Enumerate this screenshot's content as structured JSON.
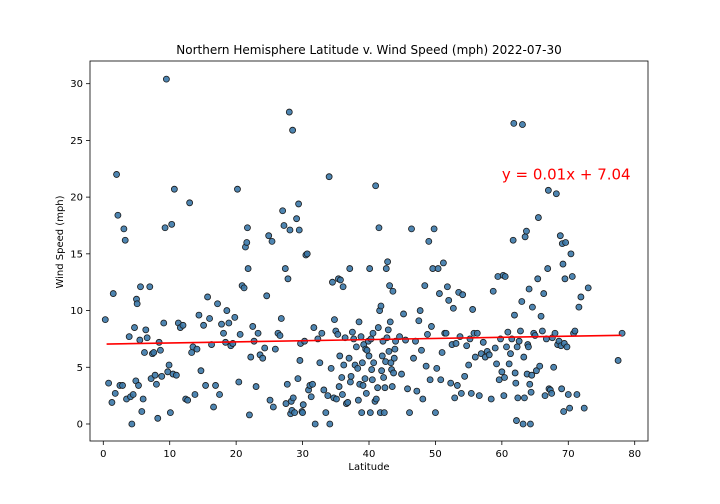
{
  "chart_data": {
    "type": "scatter",
    "title": "Northern Hemisphere Latitude v. Wind Speed (mph) 2022-07-30",
    "xlabel": "Latitude",
    "ylabel": "Wind Speed (mph)",
    "xlim": [
      -2,
      82
    ],
    "ylim": [
      -1.5,
      32
    ],
    "xticks": [
      0,
      10,
      20,
      30,
      40,
      50,
      60,
      70,
      80
    ],
    "yticks": [
      0,
      5,
      10,
      15,
      20,
      25,
      30
    ],
    "grid": false,
    "colors": {
      "points": "#3b78a8",
      "edge": "#1a1a1a",
      "line": "#ff0000"
    },
    "regression": {
      "slope": 0.01,
      "intercept": 7.04,
      "x_range": [
        0.5,
        78
      ],
      "label": "y = 0.01x + 7.04",
      "label_x": 60,
      "label_y": 22
    },
    "points": [
      [
        0.3,
        9.2
      ],
      [
        0.8,
        3.6
      ],
      [
        1.3,
        1.9
      ],
      [
        1.5,
        11.5
      ],
      [
        1.8,
        2.7
      ],
      [
        2.0,
        22.0
      ],
      [
        2.2,
        18.4
      ],
      [
        2.5,
        3.4
      ],
      [
        2.9,
        3.4
      ],
      [
        3.1,
        17.2
      ],
      [
        3.3,
        16.2
      ],
      [
        3.5,
        2.2
      ],
      [
        3.9,
        7.7
      ],
      [
        4.1,
        2.4
      ],
      [
        4.3,
        0.0
      ],
      [
        4.5,
        2.6
      ],
      [
        4.7,
        8.5
      ],
      [
        4.9,
        3.8
      ],
      [
        5.0,
        11.0
      ],
      [
        5.1,
        10.6
      ],
      [
        5.3,
        3.4
      ],
      [
        5.5,
        7.4
      ],
      [
        5.6,
        12.1
      ],
      [
        5.8,
        1.1
      ],
      [
        6.0,
        2.2
      ],
      [
        6.2,
        6.3
      ],
      [
        6.4,
        8.3
      ],
      [
        6.6,
        7.6
      ],
      [
        7.0,
        12.1
      ],
      [
        7.2,
        4.0
      ],
      [
        7.4,
        6.2
      ],
      [
        7.6,
        6.3
      ],
      [
        7.8,
        4.3
      ],
      [
        8.0,
        3.5
      ],
      [
        8.2,
        0.5
      ],
      [
        8.4,
        7.2
      ],
      [
        8.6,
        6.5
      ],
      [
        8.8,
        4.2
      ],
      [
        9.1,
        8.9
      ],
      [
        9.3,
        17.3
      ],
      [
        9.5,
        30.4
      ],
      [
        9.7,
        4.6
      ],
      [
        9.9,
        5.2
      ],
      [
        10.1,
        1.0
      ],
      [
        10.3,
        17.6
      ],
      [
        10.5,
        4.4
      ],
      [
        10.7,
        20.7
      ],
      [
        11.0,
        4.3
      ],
      [
        11.3,
        8.9
      ],
      [
        11.6,
        8.5
      ],
      [
        12.0,
        8.7
      ],
      [
        12.4,
        2.2
      ],
      [
        12.7,
        2.1
      ],
      [
        13.0,
        19.5
      ],
      [
        13.3,
        6.3
      ],
      [
        13.5,
        6.8
      ],
      [
        13.8,
        2.6
      ],
      [
        14.1,
        6.6
      ],
      [
        14.4,
        9.6
      ],
      [
        14.7,
        4.7
      ],
      [
        15.1,
        8.7
      ],
      [
        15.4,
        3.4
      ],
      [
        15.7,
        11.2
      ],
      [
        16.0,
        9.3
      ],
      [
        16.3,
        7.0
      ],
      [
        16.6,
        1.5
      ],
      [
        16.9,
        3.4
      ],
      [
        17.2,
        10.6
      ],
      [
        17.5,
        2.6
      ],
      [
        17.8,
        8.8
      ],
      [
        18.1,
        8.0
      ],
      [
        18.4,
        7.2
      ],
      [
        18.6,
        10.0
      ],
      [
        18.9,
        8.9
      ],
      [
        19.2,
        6.9
      ],
      [
        19.5,
        7.1
      ],
      [
        19.8,
        9.4
      ],
      [
        20.2,
        20.7
      ],
      [
        20.4,
        3.7
      ],
      [
        20.6,
        7.9
      ],
      [
        20.9,
        12.2
      ],
      [
        21.2,
        12.0
      ],
      [
        21.4,
        15.6
      ],
      [
        21.6,
        16.0
      ],
      [
        21.7,
        17.3
      ],
      [
        21.8,
        13.7
      ],
      [
        22.0,
        0.8
      ],
      [
        22.2,
        5.9
      ],
      [
        22.5,
        8.6
      ],
      [
        22.7,
        7.3
      ],
      [
        23.0,
        3.3
      ],
      [
        23.3,
        8.0
      ],
      [
        23.6,
        6.1
      ],
      [
        24.0,
        5.8
      ],
      [
        24.3,
        6.7
      ],
      [
        24.6,
        11.3
      ],
      [
        24.9,
        16.6
      ],
      [
        25.1,
        2.1
      ],
      [
        25.4,
        16.1
      ],
      [
        25.6,
        1.5
      ],
      [
        25.9,
        6.6
      ],
      [
        26.3,
        8.0
      ],
      [
        26.6,
        7.8
      ],
      [
        26.8,
        9.3
      ],
      [
        27.0,
        18.8
      ],
      [
        27.2,
        17.5
      ],
      [
        27.4,
        13.7
      ],
      [
        27.5,
        1.8
      ],
      [
        27.7,
        3.5
      ],
      [
        27.8,
        12.8
      ],
      [
        28.0,
        27.5
      ],
      [
        28.1,
        17.1
      ],
      [
        28.2,
        0.9
      ],
      [
        28.3,
        2.0
      ],
      [
        28.4,
        1.2
      ],
      [
        28.5,
        25.9
      ],
      [
        28.6,
        2.3
      ],
      [
        28.8,
        1.0
      ],
      [
        29.1,
        18.1
      ],
      [
        29.3,
        4.0
      ],
      [
        29.4,
        19.4
      ],
      [
        29.5,
        17.1
      ],
      [
        29.6,
        5.6
      ],
      [
        29.7,
        7.1
      ],
      [
        29.9,
        1.1
      ],
      [
        30.0,
        1.0
      ],
      [
        30.1,
        1.7
      ],
      [
        30.3,
        7.3
      ],
      [
        30.5,
        14.9
      ],
      [
        30.7,
        15.0
      ],
      [
        30.9,
        3.0
      ],
      [
        31.1,
        3.4
      ],
      [
        31.3,
        2.4
      ],
      [
        31.5,
        3.5
      ],
      [
        31.7,
        8.5
      ],
      [
        31.9,
        0.0
      ],
      [
        32.3,
        7.5
      ],
      [
        32.6,
        5.4
      ],
      [
        32.9,
        8.0
      ],
      [
        33.2,
        3.0
      ],
      [
        33.5,
        1.0
      ],
      [
        33.8,
        2.5
      ],
      [
        34.0,
        21.8
      ],
      [
        34.1,
        0.0
      ],
      [
        34.3,
        4.9
      ],
      [
        34.5,
        12.5
      ],
      [
        34.7,
        2.3
      ],
      [
        34.8,
        9.2
      ],
      [
        35.0,
        8.2
      ],
      [
        35.1,
        2.2
      ],
      [
        35.3,
        7.9
      ],
      [
        35.4,
        12.8
      ],
      [
        35.5,
        3.3
      ],
      [
        35.6,
        6.0
      ],
      [
        35.7,
        12.7
      ],
      [
        35.9,
        4.1
      ],
      [
        36.0,
        2.6
      ],
      [
        36.1,
        12.1
      ],
      [
        36.2,
        5.2
      ],
      [
        36.4,
        7.6
      ],
      [
        36.6,
        1.8
      ],
      [
        36.8,
        1.9
      ],
      [
        37.0,
        5.8
      ],
      [
        37.1,
        13.7
      ],
      [
        37.2,
        3.7
      ],
      [
        37.3,
        4.2
      ],
      [
        37.5,
        8.1
      ],
      [
        37.7,
        7.5
      ],
      [
        37.9,
        5.2
      ],
      [
        38.1,
        6.8
      ],
      [
        38.3,
        4.9
      ],
      [
        38.4,
        2.1
      ],
      [
        38.5,
        9.0
      ],
      [
        38.6,
        3.5
      ],
      [
        38.8,
        7.7
      ],
      [
        38.9,
        1.0
      ],
      [
        39.0,
        5.4
      ],
      [
        39.1,
        3.4
      ],
      [
        39.2,
        7.0
      ],
      [
        39.4,
        4.0
      ],
      [
        39.5,
        6.6
      ],
      [
        39.6,
        2.7
      ],
      [
        39.7,
        6.5
      ],
      [
        39.9,
        7.3
      ],
      [
        40.0,
        6.0
      ],
      [
        40.1,
        13.7
      ],
      [
        40.2,
        1.0
      ],
      [
        40.3,
        7.5
      ],
      [
        40.4,
        4.8
      ],
      [
        40.5,
        3.9
      ],
      [
        40.6,
        8.0
      ],
      [
        40.7,
        5.4
      ],
      [
        40.9,
        2.0
      ],
      [
        41.0,
        21.0
      ],
      [
        41.1,
        2.2
      ],
      [
        41.3,
        3.2
      ],
      [
        41.4,
        8.5
      ],
      [
        41.5,
        17.3
      ],
      [
        41.6,
        10.0
      ],
      [
        41.7,
        1.0
      ],
      [
        41.8,
        10.4
      ],
      [
        41.9,
        4.7
      ],
      [
        42.0,
        6.0
      ],
      [
        42.1,
        7.3
      ],
      [
        42.2,
        4.1
      ],
      [
        42.3,
        1.0
      ],
      [
        42.4,
        3.2
      ],
      [
        42.5,
        5.5
      ],
      [
        42.6,
        13.7
      ],
      [
        42.7,
        7.6
      ],
      [
        42.8,
        14.3
      ],
      [
        42.9,
        8.3
      ],
      [
        43.0,
        6.4
      ],
      [
        43.1,
        12.2
      ],
      [
        43.2,
        9.0
      ],
      [
        43.3,
        5.4
      ],
      [
        43.4,
        4.8
      ],
      [
        43.5,
        3.3
      ],
      [
        43.6,
        11.7
      ],
      [
        43.7,
        4.5
      ],
      [
        43.8,
        5.8
      ],
      [
        43.9,
        6.6
      ],
      [
        44.0,
        7.3
      ],
      [
        44.6,
        7.7
      ],
      [
        44.9,
        4.4
      ],
      [
        45.2,
        9.7
      ],
      [
        45.5,
        7.4
      ],
      [
        45.8,
        3.1
      ],
      [
        46.1,
        1.0
      ],
      [
        46.4,
        17.2
      ],
      [
        46.7,
        5.8
      ],
      [
        47.0,
        7.3
      ],
      [
        47.2,
        2.9
      ],
      [
        47.5,
        9.1
      ],
      [
        47.7,
        10.0
      ],
      [
        47.9,
        6.5
      ],
      [
        48.1,
        2.2
      ],
      [
        48.4,
        12.2
      ],
      [
        48.6,
        5.1
      ],
      [
        48.8,
        7.9
      ],
      [
        49.0,
        16.1
      ],
      [
        49.2,
        3.9
      ],
      [
        49.4,
        8.6
      ],
      [
        49.6,
        13.7
      ],
      [
        49.8,
        17.2
      ],
      [
        50.0,
        1.0
      ],
      [
        50.2,
        4.9
      ],
      [
        50.4,
        13.7
      ],
      [
        50.6,
        11.5
      ],
      [
        50.8,
        3.9
      ],
      [
        51.0,
        6.3
      ],
      [
        51.2,
        14.2
      ],
      [
        51.4,
        8.0
      ],
      [
        51.6,
        8.0
      ],
      [
        51.8,
        12.1
      ],
      [
        52.0,
        10.9
      ],
      [
        52.3,
        3.6
      ],
      [
        52.5,
        7.0
      ],
      [
        52.7,
        10.2
      ],
      [
        52.9,
        2.3
      ],
      [
        53.1,
        7.1
      ],
      [
        53.3,
        3.4
      ],
      [
        53.5,
        11.6
      ],
      [
        53.7,
        7.7
      ],
      [
        53.9,
        2.7
      ],
      [
        54.1,
        11.4
      ],
      [
        54.4,
        4.2
      ],
      [
        54.7,
        6.9
      ],
      [
        55.0,
        5.2
      ],
      [
        55.2,
        7.5
      ],
      [
        55.4,
        2.7
      ],
      [
        55.6,
        10.1
      ],
      [
        55.8,
        8.0
      ],
      [
        56.0,
        5.9
      ],
      [
        56.3,
        8.0
      ],
      [
        56.6,
        2.5
      ],
      [
        56.9,
        6.2
      ],
      [
        57.2,
        7.2
      ],
      [
        57.5,
        5.9
      ],
      [
        57.8,
        6.4
      ],
      [
        58.1,
        6.1
      ],
      [
        58.4,
        2.2
      ],
      [
        58.7,
        11.7
      ],
      [
        59.0,
        6.7
      ],
      [
        59.2,
        5.3
      ],
      [
        59.4,
        13.0
      ],
      [
        59.6,
        3.9
      ],
      [
        59.8,
        7.5
      ],
      [
        60.0,
        4.6
      ],
      [
        60.2,
        13.1
      ],
      [
        60.3,
        2.5
      ],
      [
        60.4,
        4.1
      ],
      [
        60.5,
        13.0
      ],
      [
        60.7,
        6.8
      ],
      [
        60.9,
        8.1
      ],
      [
        61.1,
        5.3
      ],
      [
        61.3,
        6.2
      ],
      [
        61.5,
        7.5
      ],
      [
        61.7,
        16.2
      ],
      [
        61.8,
        26.5
      ],
      [
        61.9,
        9.6
      ],
      [
        62.0,
        4.5
      ],
      [
        62.1,
        3.6
      ],
      [
        62.2,
        0.3
      ],
      [
        62.3,
        6.8
      ],
      [
        62.4,
        2.3
      ],
      [
        62.6,
        7.3
      ],
      [
        62.8,
        8.2
      ],
      [
        63.0,
        10.8
      ],
      [
        63.1,
        26.4
      ],
      [
        63.2,
        0.0
      ],
      [
        63.3,
        5.9
      ],
      [
        63.4,
        2.3
      ],
      [
        63.5,
        16.5
      ],
      [
        63.7,
        17.0
      ],
      [
        63.8,
        4.4
      ],
      [
        63.9,
        7.0
      ],
      [
        64.0,
        6.8
      ],
      [
        64.1,
        11.9
      ],
      [
        64.2,
        3.5
      ],
      [
        64.3,
        0.0
      ],
      [
        64.4,
        2.8
      ],
      [
        64.5,
        4.3
      ],
      [
        64.6,
        10.3
      ],
      [
        64.8,
        8.0
      ],
      [
        65.0,
        7.8
      ],
      [
        65.2,
        4.7
      ],
      [
        65.4,
        12.8
      ],
      [
        65.5,
        18.2
      ],
      [
        65.7,
        5.1
      ],
      [
        65.9,
        9.5
      ],
      [
        66.1,
        8.2
      ],
      [
        66.3,
        11.5
      ],
      [
        66.5,
        2.5
      ],
      [
        66.7,
        7.5
      ],
      [
        66.9,
        13.7
      ],
      [
        67.0,
        20.6
      ],
      [
        67.1,
        3.1
      ],
      [
        67.3,
        3.0
      ],
      [
        67.5,
        2.7
      ],
      [
        67.6,
        7.6
      ],
      [
        67.8,
        5.0
      ],
      [
        68.0,
        8.0
      ],
      [
        68.2,
        20.3
      ],
      [
        68.4,
        7.0
      ],
      [
        68.6,
        7.3
      ],
      [
        68.8,
        16.6
      ],
      [
        68.9,
        6.9
      ],
      [
        69.0,
        3.1
      ],
      [
        69.1,
        15.9
      ],
      [
        69.2,
        14.1
      ],
      [
        69.3,
        1.1
      ],
      [
        69.4,
        7.1
      ],
      [
        69.5,
        12.8
      ],
      [
        69.6,
        16.0
      ],
      [
        69.8,
        6.8
      ],
      [
        70.0,
        2.6
      ],
      [
        70.2,
        1.4
      ],
      [
        70.4,
        15.0
      ],
      [
        70.6,
        13.0
      ],
      [
        70.8,
        8.0
      ],
      [
        71.0,
        8.2
      ],
      [
        71.3,
        2.6
      ],
      [
        71.6,
        10.3
      ],
      [
        71.9,
        11.2
      ],
      [
        72.4,
        1.4
      ],
      [
        73.0,
        12.0
      ],
      [
        77.5,
        5.6
      ],
      [
        78.1,
        8.0
      ]
    ]
  }
}
